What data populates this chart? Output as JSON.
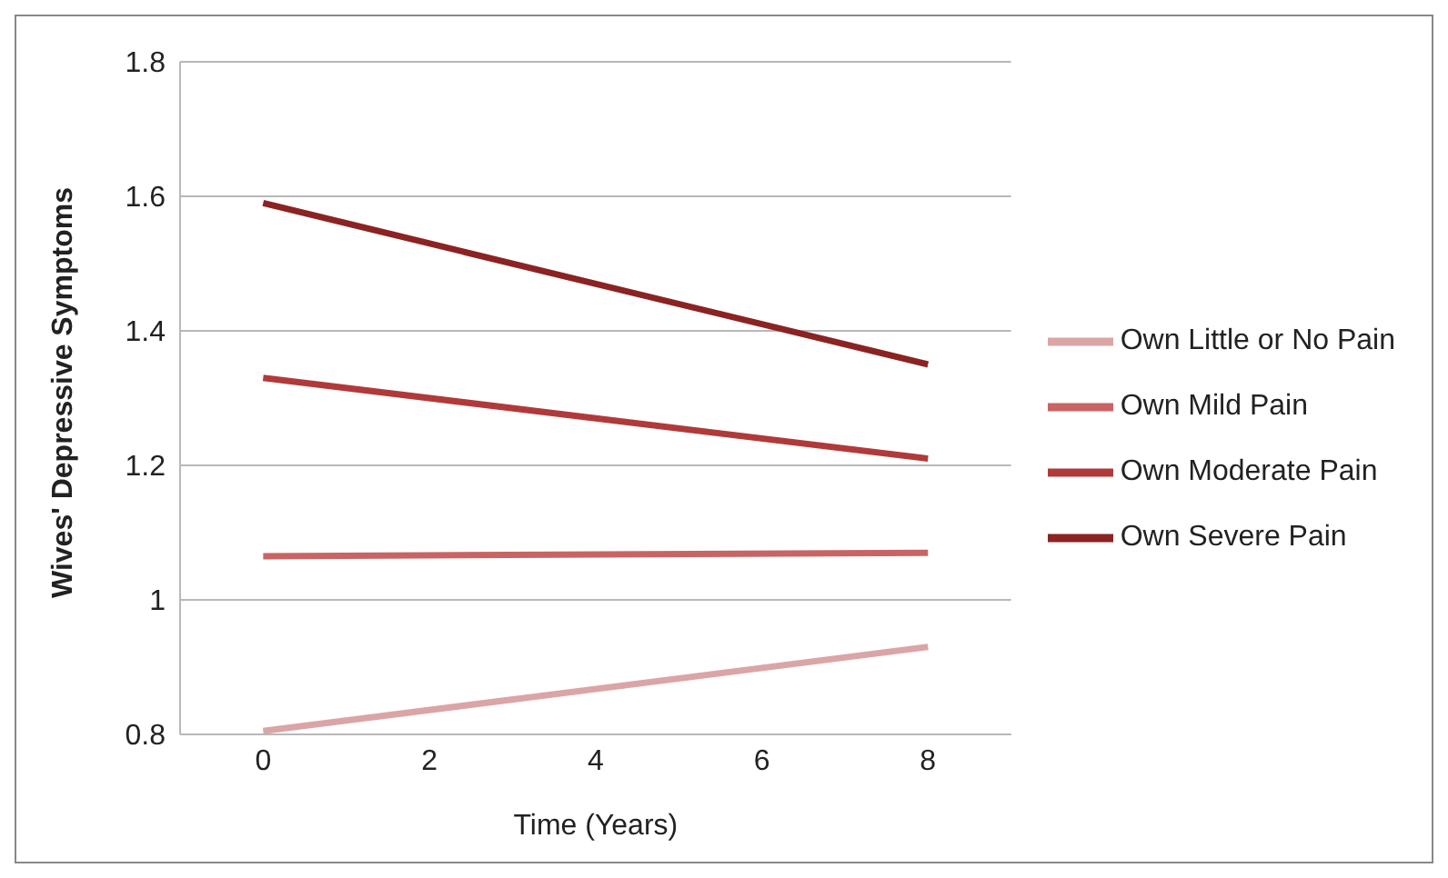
{
  "chart_data": {
    "type": "line",
    "xlabel": "Time (Years)",
    "ylabel": "Wives' Depressive Symptoms",
    "x": [
      0,
      8
    ],
    "series": [
      {
        "name": "Own Severe Pain",
        "color": "#8b2323",
        "values": [
          1.59,
          1.35
        ]
      },
      {
        "name": "Own Moderate Pain",
        "color": "#b03a3a",
        "values": [
          1.33,
          1.21
        ]
      },
      {
        "name": "Own Mild Pain",
        "color": "#c96464",
        "values": [
          1.065,
          1.07
        ]
      },
      {
        "name": "Own Little or No Pain",
        "color": "#dba5a5",
        "values": [
          0.805,
          0.93
        ]
      }
    ],
    "xlim": [
      -1,
      9
    ],
    "xticks": [
      0,
      2,
      4,
      6,
      8
    ],
    "ylim": [
      0.8,
      1.8
    ],
    "yticks": [
      0.8,
      1,
      1.2,
      1.4,
      1.6,
      1.8
    ],
    "grid": "y",
    "legend": "right",
    "marker": "none",
    "line_style": "solid"
  }
}
